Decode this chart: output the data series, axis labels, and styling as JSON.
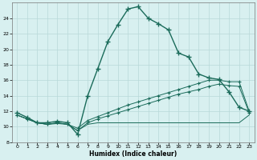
{
  "xlabel": "Humidex (Indice chaleur)",
  "background_color": "#d8f0f0",
  "grid_color": "#b8d8d8",
  "line_color": "#1a6b5a",
  "xlim": [
    -0.5,
    23.5
  ],
  "ylim": [
    8,
    26
  ],
  "xticks": [
    0,
    1,
    2,
    3,
    4,
    5,
    6,
    7,
    8,
    9,
    10,
    11,
    12,
    13,
    14,
    15,
    16,
    17,
    18,
    19,
    20,
    21,
    22,
    23
  ],
  "yticks": [
    8,
    10,
    12,
    14,
    16,
    18,
    20,
    22,
    24
  ],
  "series1_x": [
    0,
    1,
    2,
    3,
    4,
    5,
    6,
    7,
    8,
    9,
    10,
    11,
    12,
    13,
    14,
    15,
    16,
    17,
    18,
    19,
    20,
    21,
    22,
    23
  ],
  "series1_y": [
    11.8,
    11.2,
    10.5,
    10.5,
    10.7,
    10.5,
    9.0,
    14.0,
    17.5,
    21.0,
    23.2,
    25.2,
    25.5,
    24.0,
    23.3,
    22.5,
    19.5,
    19.0,
    16.8,
    16.3,
    16.1,
    14.5,
    12.5,
    12.0
  ],
  "series2_x": [
    0,
    1,
    2,
    3,
    4,
    5,
    6,
    7,
    8,
    9,
    10,
    11,
    12,
    13,
    14,
    15,
    16,
    17,
    18,
    19,
    20,
    21,
    22,
    23
  ],
  "series2_y": [
    11.5,
    11.0,
    10.5,
    10.3,
    10.5,
    10.3,
    9.8,
    10.8,
    11.3,
    11.8,
    12.3,
    12.8,
    13.2,
    13.6,
    14.0,
    14.4,
    14.8,
    15.2,
    15.6,
    16.0,
    16.0,
    15.8,
    15.8,
    12.0
  ],
  "series3_x": [
    0,
    1,
    2,
    3,
    4,
    5,
    6,
    7,
    8,
    9,
    10,
    11,
    12,
    13,
    14,
    15,
    16,
    17,
    18,
    19,
    20,
    21,
    22,
    23
  ],
  "series3_y": [
    11.5,
    11.0,
    10.5,
    10.3,
    10.5,
    10.3,
    9.5,
    10.5,
    11.0,
    11.4,
    11.8,
    12.2,
    12.6,
    13.0,
    13.4,
    13.8,
    14.2,
    14.5,
    14.8,
    15.2,
    15.5,
    15.3,
    15.2,
    11.8
  ],
  "series4_x": [
    0,
    1,
    2,
    3,
    4,
    5,
    6,
    7,
    8,
    9,
    10,
    11,
    12,
    13,
    14,
    15,
    16,
    17,
    18,
    19,
    20,
    21,
    22,
    23
  ],
  "series4_y": [
    11.5,
    11.0,
    10.5,
    10.3,
    10.4,
    10.3,
    9.5,
    10.3,
    10.5,
    10.5,
    10.5,
    10.5,
    10.5,
    10.5,
    10.5,
    10.5,
    10.5,
    10.5,
    10.5,
    10.5,
    10.5,
    10.5,
    10.5,
    11.5
  ]
}
